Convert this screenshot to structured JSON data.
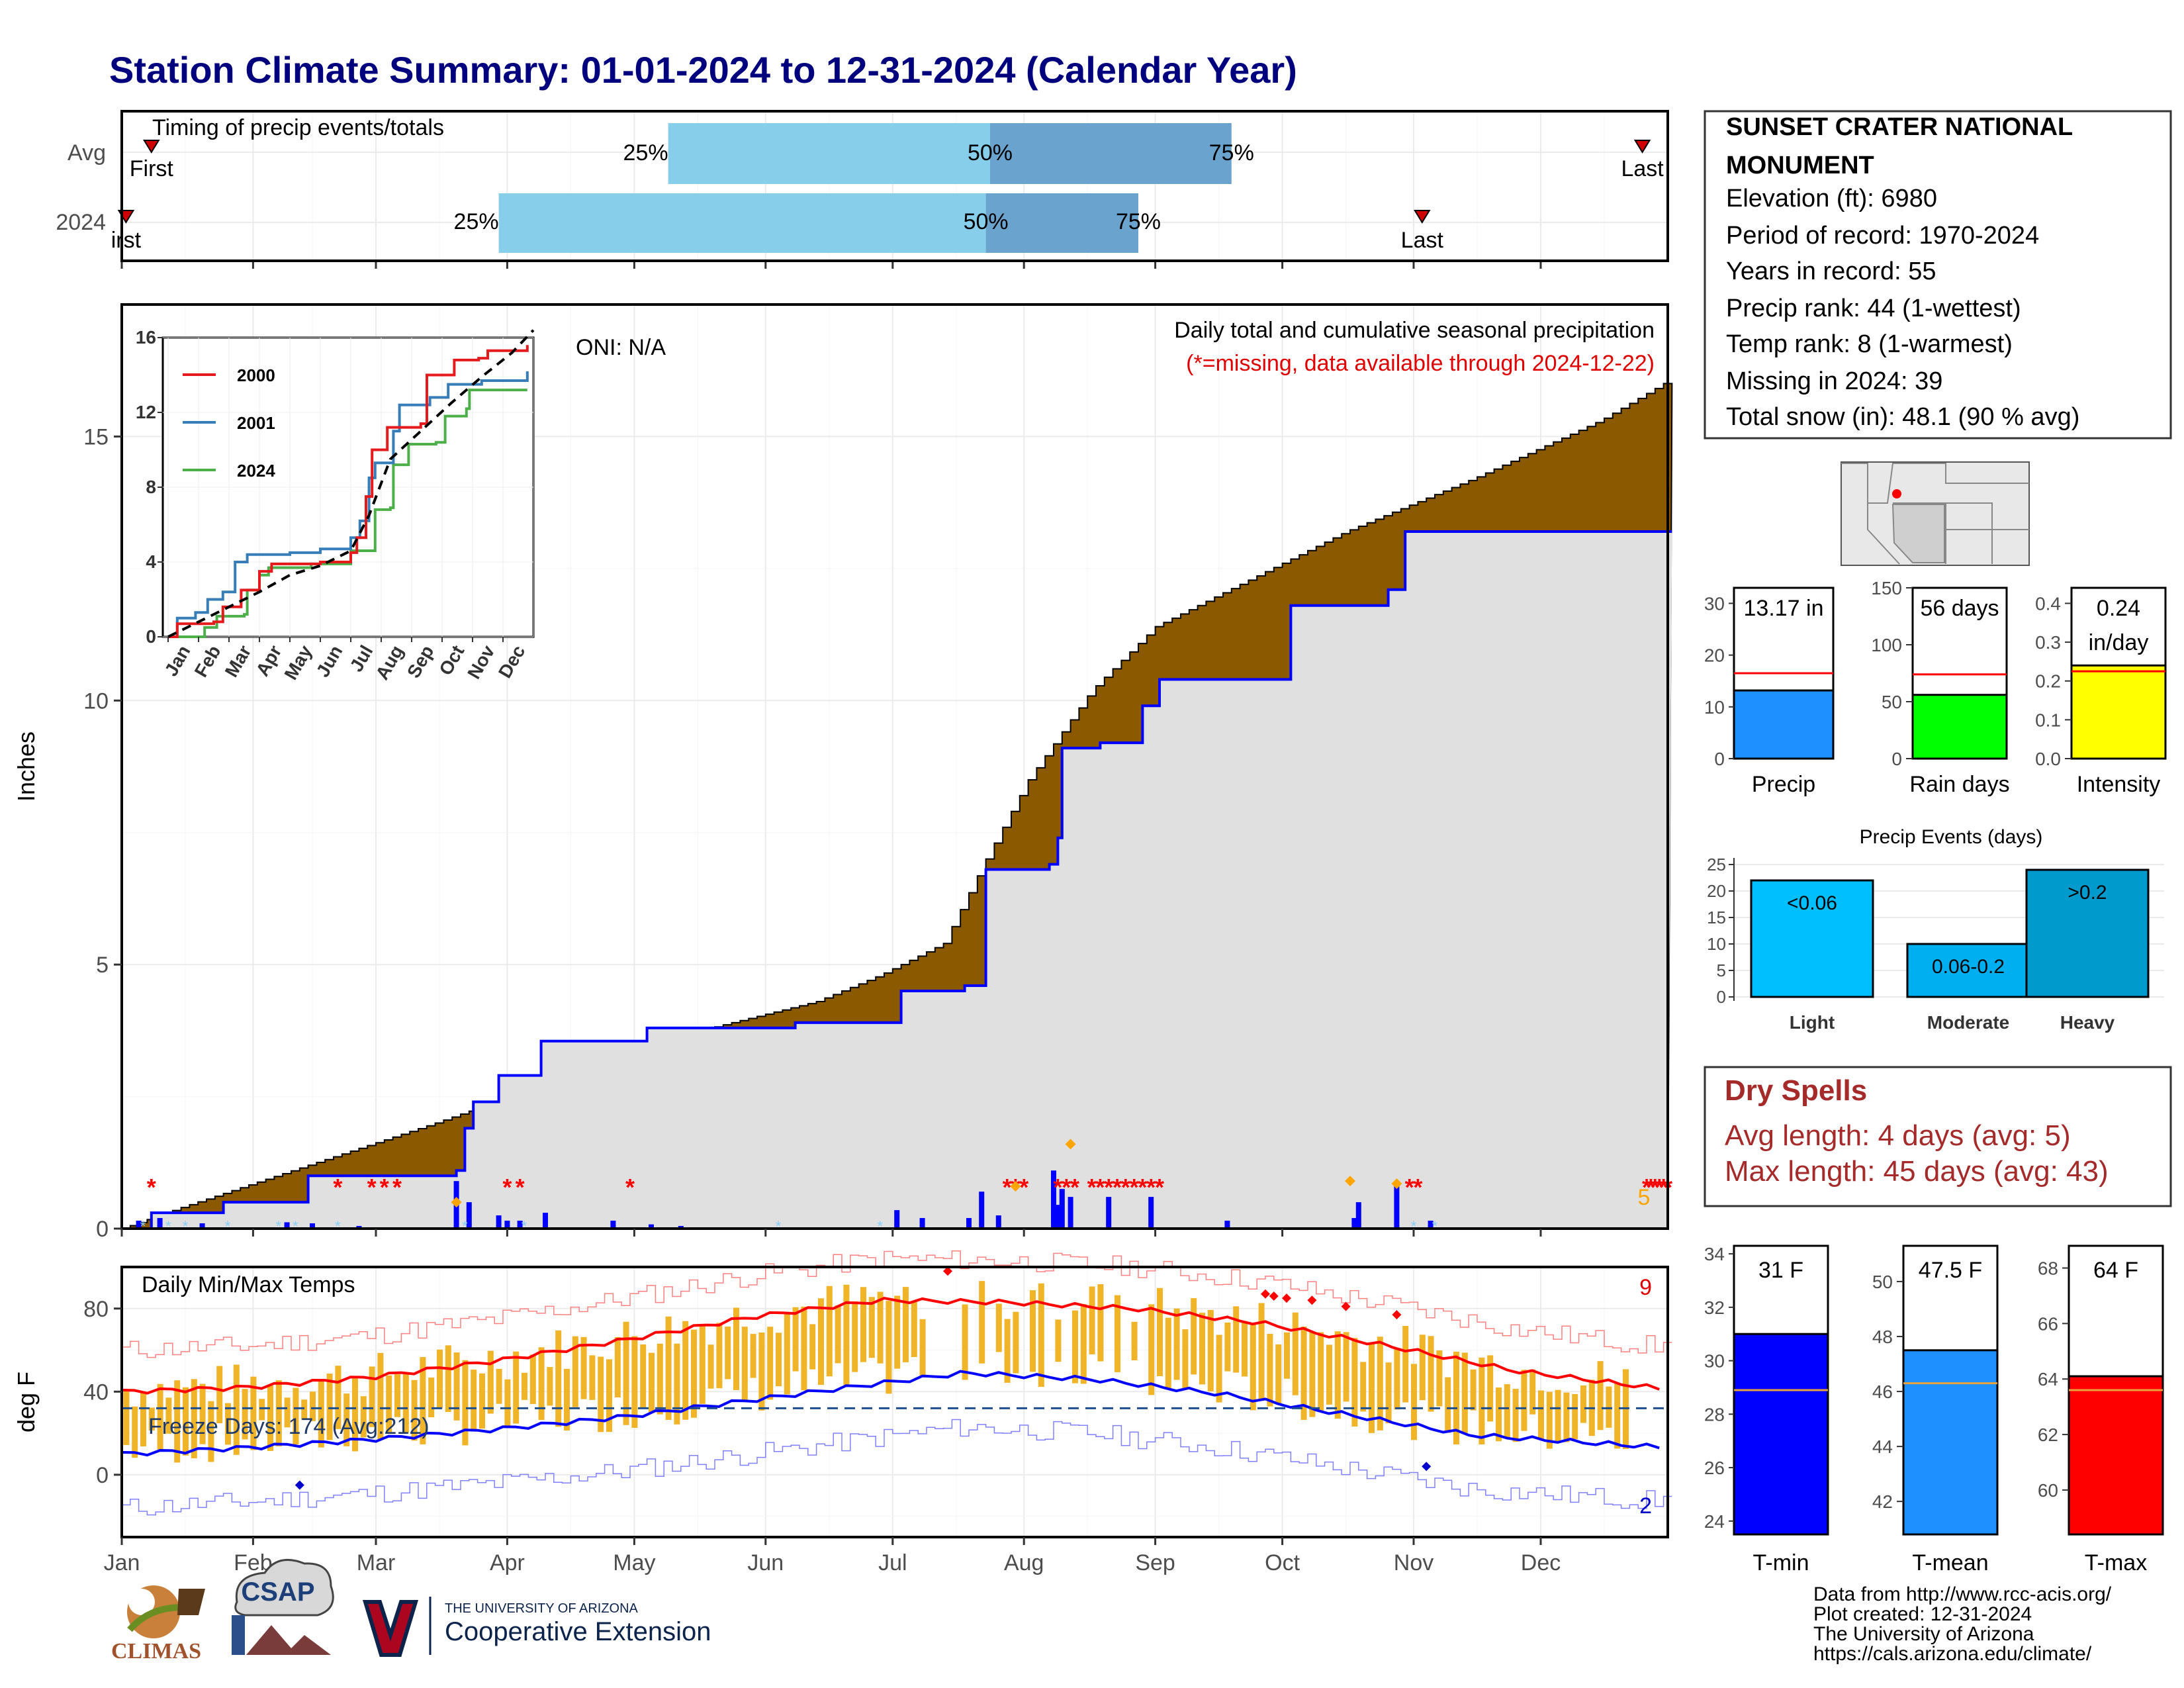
{
  "title": "Station Climate Summary: 01-01-2024 to 12-31-2024 (Calendar Year)",
  "station": {
    "name_line1": "SUNSET CRATER NATIONAL",
    "name_line2": "MONUMENT",
    "elevation": "Elevation (ft): 6980",
    "period": "Period of record: 1970-2024",
    "years": "Years in record: 55",
    "precip_rank": "Precip rank: 44 (1-wettest)",
    "temp_rank": "Temp rank: 8 (1-warmest)",
    "missing": "Missing in 2024: 39",
    "snow": "Total snow (in): 48.1 (90 % avg)"
  },
  "timing": {
    "title": "Timing of precip events/totals",
    "rows": [
      "Avg",
      "2024"
    ],
    "avg": {
      "first": "First",
      "last": "Last",
      "p25": "25%",
      "p50": "50%",
      "p75": "75%",
      "first_day": 8,
      "last_day": 360,
      "p25_day": 130,
      "p50_day": 206,
      "p75_day": 263
    },
    "y2024": {
      "first": "irst",
      "last": "Last",
      "p25": "25%",
      "p50": "50%",
      "p75": "75%",
      "first_day": 2,
      "last_day": 308,
      "p25_day": 90,
      "p50_day": 205,
      "p75_day": 241
    }
  },
  "main_panel": {
    "ylabel": "Inches",
    "oni": "ONI: N/A",
    "note1": "Daily total and cumulative seasonal precipitation",
    "note2": "(*=missing, data available through 2024-12-22)",
    "count_label": "5"
  },
  "months": [
    "Jan",
    "Feb",
    "Mar",
    "Apr",
    "May",
    "Jun",
    "Jul",
    "Aug",
    "Sep",
    "Oct",
    "Nov",
    "Dec"
  ],
  "temp_panel": {
    "ylabel": "deg F",
    "title": "Daily Min/Max Temps",
    "freeze": "Freeze Days: 174 (Avg:212)",
    "max_count": "9",
    "min_count": "2"
  },
  "minibars": {
    "precip": {
      "label": "Precip",
      "value_text": "13.17 in",
      "value": 13.17,
      "avg": 16.5,
      "ymax": 33,
      "ticks": [
        "0",
        "10",
        "20",
        "30"
      ],
      "color": "#1e90ff"
    },
    "rain": {
      "label": "Rain days",
      "value_text": "56 days",
      "value": 56,
      "avg": 74,
      "ymax": 150,
      "ticks": [
        "0",
        "50",
        "100",
        "150"
      ],
      "color": "#00ff00"
    },
    "intensity": {
      "label": "Intensity",
      "value_text1": "0.24",
      "value_text2": "in/day",
      "value": 0.24,
      "avg": 0.225,
      "ymax": 0.44,
      "ticks": [
        "0.0",
        "0.1",
        "0.2",
        "0.3",
        "0.4"
      ],
      "color": "#ffff00"
    }
  },
  "events": {
    "title": "Precip Events (days)",
    "yticks": [
      "0",
      "5",
      "10",
      "15",
      "20",
      "25"
    ],
    "bars": [
      {
        "cat": "Light",
        "label": "<0.06",
        "value": 22,
        "color": "#00bfff"
      },
      {
        "cat": "Moderate",
        "label": "0.06-0.2",
        "value": 10,
        "color": "#00afef"
      },
      {
        "cat": "Heavy",
        "label": ">0.2",
        "value": 24,
        "color": "#009acd"
      }
    ]
  },
  "dry": {
    "title": "Dry Spells",
    "avg": "Avg length: 4 days (avg: 5)",
    "max": "Max length: 45 days (avg: 43)"
  },
  "tbars": {
    "tmin": {
      "label": "T-min",
      "value_text": "31 F",
      "value": 31.0,
      "avg": 28.9,
      "ymin": 23.5,
      "ymax": 34.3,
      "ticks": [
        "24",
        "26",
        "28",
        "30",
        "32",
        "34"
      ],
      "color": "#0000ff"
    },
    "tmean": {
      "label": "T-mean",
      "value_text": "47.5 F",
      "value": 47.5,
      "avg": 46.3,
      "ymin": 40.8,
      "ymax": 51.3,
      "ticks": [
        "42",
        "44",
        "46",
        "48",
        "50"
      ],
      "color": "#1e90ff"
    },
    "tmax": {
      "label": "T-max",
      "value_text": "64 F",
      "value": 64.1,
      "avg": 63.6,
      "ymin": 58.4,
      "ymax": 68.8,
      "ticks": [
        "60",
        "62",
        "64",
        "66",
        "68"
      ],
      "color": "#ff0000"
    }
  },
  "footer": {
    "line1": "Data from http://www.rcc-acis.org/",
    "line2": "Plot created: 12-31-2024",
    "line3": "The University of Arizona",
    "line4": "https://cals.arizona.edu/climate/",
    "climas": "CLIMAS",
    "csap": "CSAP",
    "ua_small": "THE UNIVERSITY OF ARIZONA",
    "ua_big": "Cooperative Extension"
  },
  "chart_data": [
    {
      "type": "area",
      "title": "Daily total and cumulative seasonal precipitation",
      "ylabel": "Inches",
      "ylim": [
        0,
        17.5
      ],
      "yticks": [
        0,
        5,
        10,
        15
      ],
      "x_unit": "day of year",
      "avg_cumulative": [
        [
          1,
          0
        ],
        [
          15,
          0.4
        ],
        [
          45,
          1.2
        ],
        [
          75,
          2.0
        ],
        [
          100,
          2.7
        ],
        [
          125,
          3.5
        ],
        [
          150,
          4.0
        ],
        [
          165,
          4.3
        ],
        [
          180,
          4.8
        ],
        [
          195,
          5.4
        ],
        [
          205,
          7.0
        ],
        [
          215,
          8.5
        ],
        [
          230,
          10.2
        ],
        [
          245,
          11.4
        ],
        [
          265,
          12.2
        ],
        [
          290,
          13.2
        ],
        [
          320,
          14.2
        ],
        [
          350,
          15.3
        ],
        [
          366,
          16.05
        ]
      ],
      "obs_cumulative": [
        [
          1,
          0
        ],
        [
          8,
          0.3
        ],
        [
          25,
          0.5
        ],
        [
          45,
          1.0
        ],
        [
          80,
          1.1
        ],
        [
          82,
          1.9
        ],
        [
          84,
          2.4
        ],
        [
          90,
          2.9
        ],
        [
          100,
          3.55
        ],
        [
          125,
          3.8
        ],
        [
          160,
          3.9
        ],
        [
          180,
          3.9
        ],
        [
          185,
          4.5
        ],
        [
          200,
          4.6
        ],
        [
          205,
          6.8
        ],
        [
          220,
          6.9
        ],
        [
          222,
          7.4
        ],
        [
          223,
          9.1
        ],
        [
          232,
          9.2
        ],
        [
          242,
          9.9
        ],
        [
          246,
          10.4
        ],
        [
          274,
          10.4
        ],
        [
          277,
          11.8
        ],
        [
          300,
          12.1
        ],
        [
          304,
          13.2
        ],
        [
          313,
          13.2
        ],
        [
          366,
          13.2
        ]
      ],
      "daily_bars": [
        [
          5,
          0.15
        ],
        [
          10,
          0.2
        ],
        [
          20,
          0.1
        ],
        [
          40,
          0.12
        ],
        [
          46,
          0.1
        ],
        [
          57,
          0.05
        ],
        [
          80,
          0.9
        ],
        [
          83,
          0.5
        ],
        [
          90,
          0.25
        ],
        [
          92,
          0.15
        ],
        [
          95,
          0.15
        ],
        [
          101,
          0.3
        ],
        [
          117,
          0.15
        ],
        [
          126,
          0.08
        ],
        [
          133,
          0.05
        ],
        [
          184,
          0.35
        ],
        [
          190,
          0.2
        ],
        [
          201,
          0.2
        ],
        [
          204,
          0.7
        ],
        [
          208,
          0.25
        ],
        [
          221,
          1.1
        ],
        [
          222,
          0.45
        ],
        [
          223,
          0.75
        ],
        [
          225,
          0.6
        ],
        [
          234,
          0.6
        ],
        [
          244,
          0.6
        ],
        [
          262,
          0.15
        ],
        [
          292,
          0.2
        ],
        [
          293,
          0.5
        ],
        [
          302,
          0.85
        ],
        [
          310,
          0.15
        ]
      ]
    },
    {
      "type": "line",
      "title": "",
      "series": [
        {
          "name": "2000"
        },
        {
          "name": "2001"
        },
        {
          "name": "2024"
        }
      ],
      "ylim": [
        0,
        16
      ],
      "yticks": [
        0,
        4,
        8,
        12,
        16
      ]
    },
    {
      "type": "line",
      "title": "Daily Min/Max Temps",
      "ylabel": "deg F",
      "ylim": [
        -30,
        100
      ],
      "yticks": [
        0,
        40,
        80
      ],
      "normal_max": [
        [
          1,
          40
        ],
        [
          30,
          42
        ],
        [
          60,
          47
        ],
        [
          90,
          55
        ],
        [
          120,
          65
        ],
        [
          150,
          76
        ],
        [
          180,
          84
        ],
        [
          210,
          83
        ],
        [
          240,
          80
        ],
        [
          270,
          73
        ],
        [
          300,
          62
        ],
        [
          330,
          50
        ],
        [
          366,
          41
        ]
      ],
      "normal_min": [
        [
          1,
          10
        ],
        [
          30,
          13
        ],
        [
          60,
          17
        ],
        [
          90,
          22
        ],
        [
          120,
          28
        ],
        [
          150,
          36
        ],
        [
          180,
          44
        ],
        [
          200,
          49
        ],
        [
          230,
          46
        ],
        [
          260,
          39
        ],
        [
          290,
          29
        ],
        [
          320,
          19
        ],
        [
          366,
          13
        ]
      ],
      "freeze_line": 32
    }
  ]
}
